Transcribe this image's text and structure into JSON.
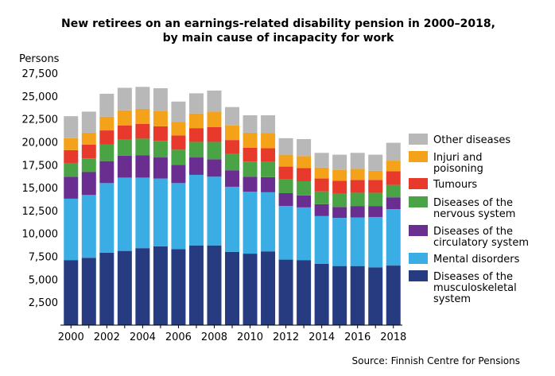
{
  "chart_data": {
    "type": "bar",
    "stacked": true,
    "title_line1": "New retirees on an earnings-related disability pension in 2000–2018,",
    "title_line2": "by main cause of incapacity for work",
    "ylabel": "Persons",
    "source": "Source: Finnish Centre for Pensions",
    "ylim": [
      0,
      27500
    ],
    "yticks": [
      "2,500",
      "5,000",
      "7,500",
      "10,000",
      "12,500",
      "15,000",
      "17,500",
      "20,000",
      "22,500",
      "25,000",
      "27,500"
    ],
    "ytick_values": [
      2500,
      5000,
      7500,
      10000,
      12500,
      15000,
      17500,
      20000,
      22500,
      25000,
      27500
    ],
    "categories": [
      "2000",
      "2001",
      "2002",
      "2003",
      "2004",
      "2005",
      "2006",
      "2007",
      "2008",
      "2009",
      "2010",
      "2011",
      "2012",
      "2013",
      "2014",
      "2015",
      "2016",
      "2017",
      "2018"
    ],
    "xtick_labels": [
      "2000",
      "",
      "2002",
      "",
      "2004",
      "",
      "2006",
      "",
      "2008",
      "",
      "2010",
      "",
      "2012",
      "",
      "2014",
      "",
      "2016",
      "",
      "2018"
    ],
    "legend_position": "right",
    "series": [
      {
        "name": "Diseases of the musculoskeletal system",
        "name_lines": [
          "Diseases of the",
          "musculoskeletal",
          "system"
        ],
        "color": "#263b80",
        "values": [
          7100,
          7350,
          7900,
          8100,
          8400,
          8600,
          8300,
          8700,
          8700,
          8000,
          7800,
          8050,
          7150,
          7100,
          6700,
          6450,
          6450,
          6300,
          6500
        ]
      },
      {
        "name": "Mental disorders",
        "name_lines": [
          "Mental disorders"
        ],
        "color": "#3aaee4",
        "values": [
          6700,
          6850,
          7600,
          8000,
          7700,
          7400,
          7200,
          7700,
          7500,
          7100,
          6750,
          6450,
          5850,
          5750,
          5200,
          5250,
          5300,
          5500,
          6150
        ]
      },
      {
        "name": "Diseases of the circulatory system",
        "name_lines": [
          "Diseases of the",
          "circulatory system"
        ],
        "color": "#6a2d90",
        "values": [
          2400,
          2500,
          2400,
          2400,
          2450,
          2300,
          2000,
          1900,
          1900,
          1800,
          1650,
          1650,
          1400,
          1300,
          1300,
          1200,
          1250,
          1200,
          1300
        ]
      },
      {
        "name": "Diseases of the nervous system",
        "name_lines": [
          "Diseases of the",
          "nervous system"
        ],
        "color": "#4aa446",
        "values": [
          1500,
          1500,
          1800,
          1800,
          1800,
          1800,
          1650,
          1700,
          1900,
          1800,
          1650,
          1650,
          1500,
          1550,
          1400,
          1450,
          1450,
          1450,
          1350
        ]
      },
      {
        "name": "Tumours",
        "name_lines": [
          "Tumours"
        ],
        "color": "#e8392d",
        "values": [
          1400,
          1500,
          1550,
          1500,
          1600,
          1600,
          1550,
          1500,
          1600,
          1500,
          1500,
          1500,
          1400,
          1450,
          1400,
          1400,
          1400,
          1400,
          1500
        ]
      },
      {
        "name": "Injuri and poisoning",
        "name_lines": [
          "Injuri and",
          "poisoning"
        ],
        "color": "#f5a21b",
        "values": [
          1300,
          1300,
          1500,
          1650,
          1650,
          1700,
          1500,
          1600,
          1700,
          1600,
          1650,
          1650,
          1300,
          1300,
          1200,
          1200,
          1200,
          1000,
          1150
        ]
      },
      {
        "name": "Other diseases",
        "name_lines": [
          "Other diseases"
        ],
        "color": "#b8b8b8",
        "values": [
          2400,
          2300,
          2500,
          2450,
          2400,
          2450,
          2200,
          2200,
          2300,
          2000,
          1900,
          1950,
          1800,
          1850,
          1600,
          1650,
          1750,
          1750,
          1950
        ]
      }
    ]
  }
}
